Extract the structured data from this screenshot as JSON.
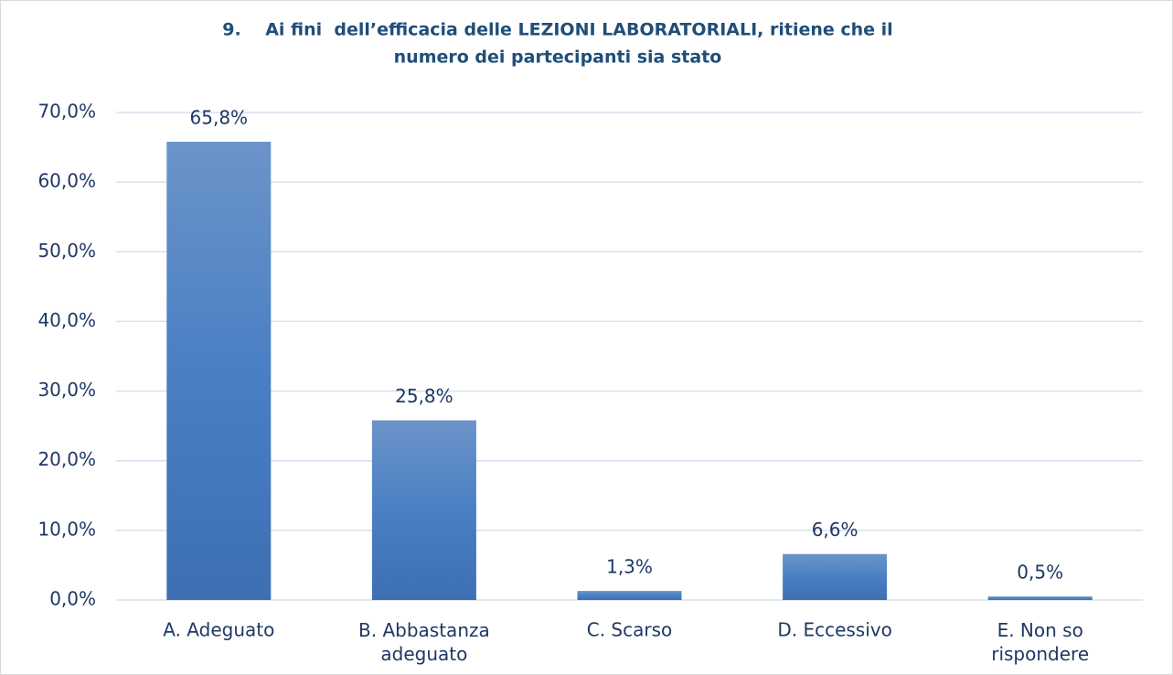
{
  "chart_data": {
    "type": "bar",
    "title": [
      "9.    Ai fini  dell’efficacia delle LEZIONI LABORATORIALI, ritiene che il",
      "numero dei partecipanti sia stato"
    ],
    "categories": [
      "A. Adeguato",
      "B. Abbastanza adeguato",
      "C. Scarso",
      "D. Eccessivo",
      "E. Non so rispondere"
    ],
    "values": [
      65.8,
      25.8,
      1.3,
      6.6,
      0.5
    ],
    "value_labels": [
      "65,8%",
      "25,8%",
      "1,3%",
      "6,6%",
      "0,5%"
    ],
    "color": "#4a7cc0",
    "ylim": [
      0,
      70
    ],
    "yticks": [
      {
        "value": 0,
        "label": "0,0%"
      },
      {
        "value": 10,
        "label": "10,0%"
      },
      {
        "value": 20,
        "label": "20,0%"
      },
      {
        "value": 30,
        "label": "30,0%"
      },
      {
        "value": 40,
        "label": "40,0%"
      },
      {
        "value": 50,
        "label": "50,0%"
      },
      {
        "value": 60,
        "label": "60,0%"
      },
      {
        "value": 70,
        "label": "70,0%"
      }
    ],
    "grid": true
  }
}
